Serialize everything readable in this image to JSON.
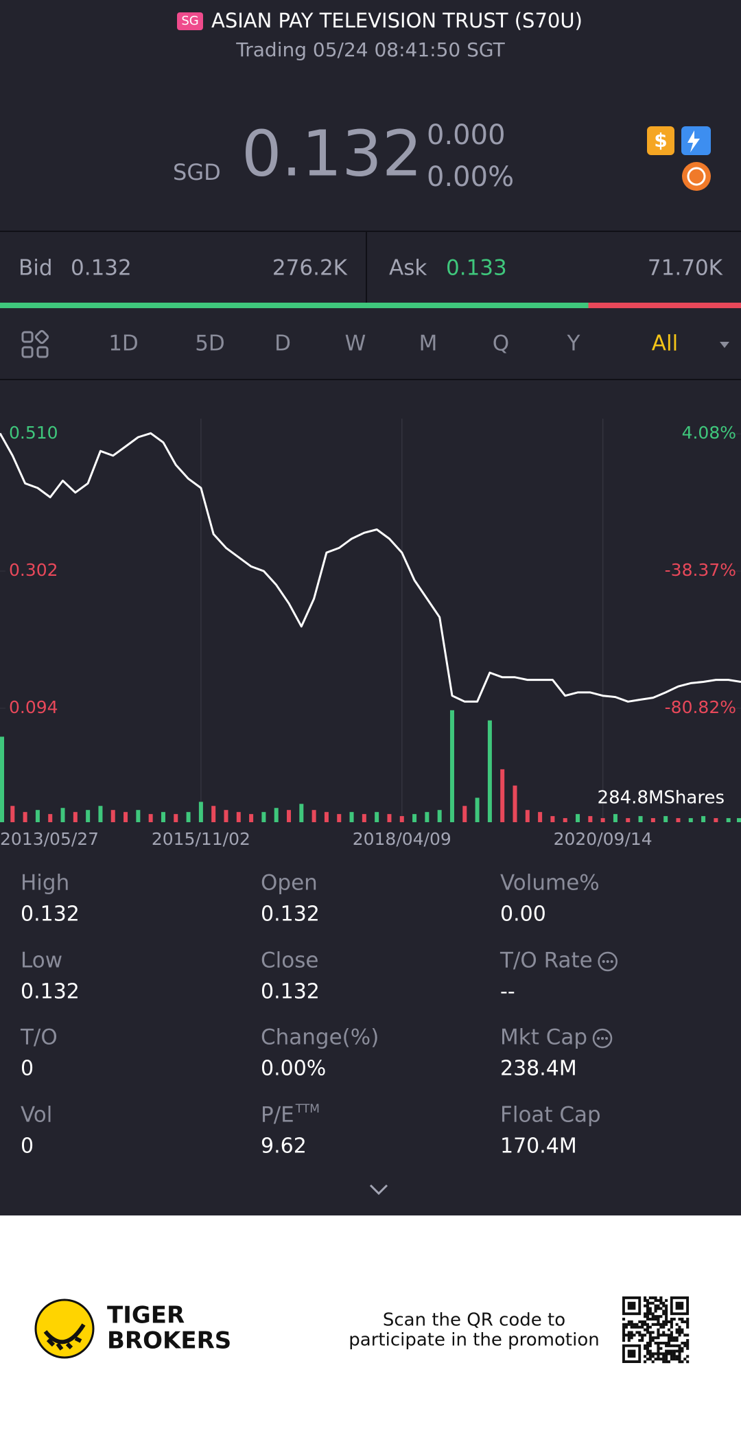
{
  "header": {
    "badge": "SG",
    "title": "ASIAN PAY TELEVISION TRUST (S70U)",
    "subtitle": "Trading 05/24 08:41:50 SGT"
  },
  "quote": {
    "currency": "SGD",
    "price": "0.132",
    "change": "0.000",
    "change_pct": "0.00%"
  },
  "order_book": {
    "bid_label": "Bid",
    "bid": "0.132",
    "bid_size": "276.2K",
    "ask_label": "Ask",
    "ask": "0.133",
    "ask_size": "71.70K",
    "bid_ratio": 0.794
  },
  "tabs": [
    "1D",
    "5D",
    "D",
    "W",
    "M",
    "Q",
    "Y",
    "All"
  ],
  "active_tab": 7,
  "chart_data": {
    "type": "line",
    "color": "#ffffff",
    "categories": [
      "2013/05/27",
      null,
      null,
      null,
      null,
      null,
      null,
      null,
      null,
      null,
      null,
      null,
      null,
      null,
      null,
      null,
      "2015/11/02",
      null,
      null,
      null,
      null,
      null,
      null,
      null,
      null,
      null,
      null,
      null,
      null,
      null,
      null,
      null,
      "2018/04/09",
      null,
      null,
      null,
      null,
      null,
      null,
      null,
      null,
      null,
      null,
      null,
      null,
      null,
      null,
      null,
      "2020/09/14",
      null,
      null,
      null,
      null,
      null,
      null,
      null,
      null,
      null,
      null,
      null
    ],
    "values": [
      0.511,
      0.477,
      0.435,
      0.428,
      0.414,
      0.439,
      0.421,
      0.435,
      0.484,
      0.477,
      0.491,
      0.505,
      0.511,
      0.497,
      0.463,
      0.442,
      0.428,
      0.358,
      0.337,
      0.323,
      0.309,
      0.302,
      0.281,
      0.253,
      0.218,
      0.26,
      0.33,
      0.337,
      0.351,
      0.36,
      0.365,
      0.351,
      0.33,
      0.288,
      0.26,
      0.232,
      0.113,
      0.104,
      0.104,
      0.148,
      0.141,
      0.141,
      0.137,
      0.137,
      0.137,
      0.113,
      0.118,
      0.118,
      0.113,
      0.111,
      0.104,
      0.107,
      0.11,
      0.118,
      0.127,
      0.132,
      0.134,
      0.137,
      0.137,
      0.134
    ],
    "ylim": [
      0.07,
      0.53
    ],
    "yticks": [
      {
        "value": 0.51,
        "label": "0.510"
      },
      0.302,
      {
        "value": 0.094,
        "label": "0.094"
      }
    ],
    "ytick_colors": [
      "#3fc77c",
      "#e8485a",
      "#e8485a"
    ],
    "y2lim": [
      -85.71,
      8.16
    ],
    "y2ticks": [
      {
        "value": 4.08,
        "label": "4.08%"
      },
      {
        "value": -38.37,
        "label": "-38.37%"
      },
      {
        "value": -80.82,
        "label": "-80.82%"
      }
    ],
    "grid": true,
    "volume": {
      "label": "284.8MShares",
      "lim": [
        0,
        300
      ],
      "up_color": "#3fc77c",
      "down_color": "#e8485a",
      "values": [
        210,
        40,
        25,
        30,
        20,
        35,
        25,
        30,
        40,
        30,
        25,
        30,
        20,
        25,
        20,
        25,
        50,
        40,
        30,
        25,
        20,
        25,
        35,
        30,
        45,
        30,
        25,
        20,
        25,
        20,
        25,
        20,
        15,
        20,
        25,
        30,
        275,
        40,
        60,
        250,
        130,
        90,
        30,
        25,
        15,
        10,
        20,
        15,
        10,
        20,
        10,
        15,
        10,
        15,
        10,
        10,
        15,
        10,
        10,
        10
      ]
    }
  },
  "stats": [
    {
      "label": "High",
      "value": "0.132"
    },
    {
      "label": "Open",
      "value": "0.132"
    },
    {
      "label": "Volume%",
      "value": "0.00"
    },
    {
      "label": "Low",
      "value": "0.132"
    },
    {
      "label": "Close",
      "value": "0.132"
    },
    {
      "label": "T/O Rate",
      "value": "--",
      "info": true
    },
    {
      "label": "T/O",
      "value": "0"
    },
    {
      "label": "Change(%)",
      "value": "0.00%"
    },
    {
      "label": "Mkt Cap",
      "value": "238.4M",
      "info": true
    },
    {
      "label": "Vol",
      "value": "0"
    },
    {
      "label": "P/E",
      "label_sup": "TTM",
      "value": "9.62"
    },
    {
      "label": "Float Cap",
      "value": "170.4M"
    }
  ],
  "footer": {
    "brand": [
      "TIGER",
      "BROKERS"
    ],
    "promo": [
      "Scan the QR code to",
      "participate in the promotion"
    ]
  }
}
